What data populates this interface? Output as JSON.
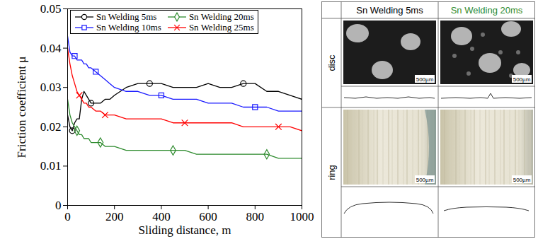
{
  "chart_data": {
    "type": "line",
    "xlabel": "Sliding distance, m",
    "ylabel": "Friction coefficient μ",
    "xlim": [
      0,
      1000
    ],
    "xticks": [
      0,
      200,
      400,
      600,
      800,
      1000
    ],
    "ylim": [
      0,
      0.05
    ],
    "yticks": [
      0,
      0.01,
      0.02,
      0.03,
      0.04,
      0.05
    ],
    "grid": false,
    "legend": "upper left",
    "x": [
      0,
      10,
      20,
      30,
      40,
      50,
      60,
      70,
      80,
      90,
      100,
      120,
      140,
      160,
      180,
      200,
      250,
      300,
      350,
      400,
      450,
      500,
      550,
      600,
      650,
      700,
      750,
      800,
      850,
      900,
      950,
      1000
    ],
    "series": [
      {
        "name": "Sn Welding 5ms",
        "color": "#000000",
        "marker": "circle",
        "line_style": "solid",
        "values": [
          0.023,
          0.02,
          0.019,
          0.021,
          0.022,
          0.022,
          0.027,
          0.029,
          0.028,
          0.027,
          0.026,
          0.026,
          0.026,
          0.027,
          0.027,
          0.028,
          0.03,
          0.031,
          0.031,
          0.031,
          0.03,
          0.03,
          0.03,
          0.031,
          0.03,
          0.03,
          0.031,
          0.031,
          0.029,
          0.029,
          0.028,
          0.027
        ]
      },
      {
        "name": "Sn Welding 10ms",
        "color": "#1a1aff",
        "marker": "square",
        "line_style": "solid",
        "values": [
          0.043,
          0.039,
          0.038,
          0.038,
          0.037,
          0.037,
          0.037,
          0.036,
          0.036,
          0.035,
          0.035,
          0.034,
          0.033,
          0.032,
          0.031,
          0.03,
          0.029,
          0.029,
          0.028,
          0.028,
          0.027,
          0.027,
          0.027,
          0.026,
          0.026,
          0.026,
          0.025,
          0.025,
          0.025,
          0.024,
          0.024,
          0.024
        ]
      },
      {
        "name": "Sn Welding 20ms",
        "color": "#2e8b2e",
        "marker": "diamond",
        "line_style": "solid",
        "values": [
          0.027,
          0.023,
          0.021,
          0.02,
          0.019,
          0.018,
          0.018,
          0.017,
          0.017,
          0.017,
          0.016,
          0.016,
          0.016,
          0.015,
          0.015,
          0.015,
          0.014,
          0.014,
          0.014,
          0.014,
          0.014,
          0.014,
          0.013,
          0.013,
          0.013,
          0.013,
          0.013,
          0.013,
          0.013,
          0.012,
          0.012,
          0.012
        ]
      },
      {
        "name": "Sn Welding 25ms",
        "color": "#ff0000",
        "marker": "times",
        "line_style": "solid",
        "values": [
          0.04,
          0.036,
          0.033,
          0.031,
          0.029,
          0.028,
          0.027,
          0.026,
          0.026,
          0.025,
          0.025,
          0.024,
          0.024,
          0.023,
          0.023,
          0.023,
          0.022,
          0.022,
          0.022,
          0.022,
          0.021,
          0.021,
          0.021,
          0.021,
          0.021,
          0.021,
          0.02,
          0.02,
          0.02,
          0.02,
          0.02,
          0.019
        ]
      }
    ]
  },
  "table": {
    "header": [
      {
        "text": "Sn Welding 5ms",
        "color": "#000000"
      },
      {
        "text": "Sn Welding 20ms",
        "color": "#2e8b2e"
      }
    ],
    "rows": [
      "disc",
      "ring"
    ],
    "scale_bar": "500µm"
  }
}
